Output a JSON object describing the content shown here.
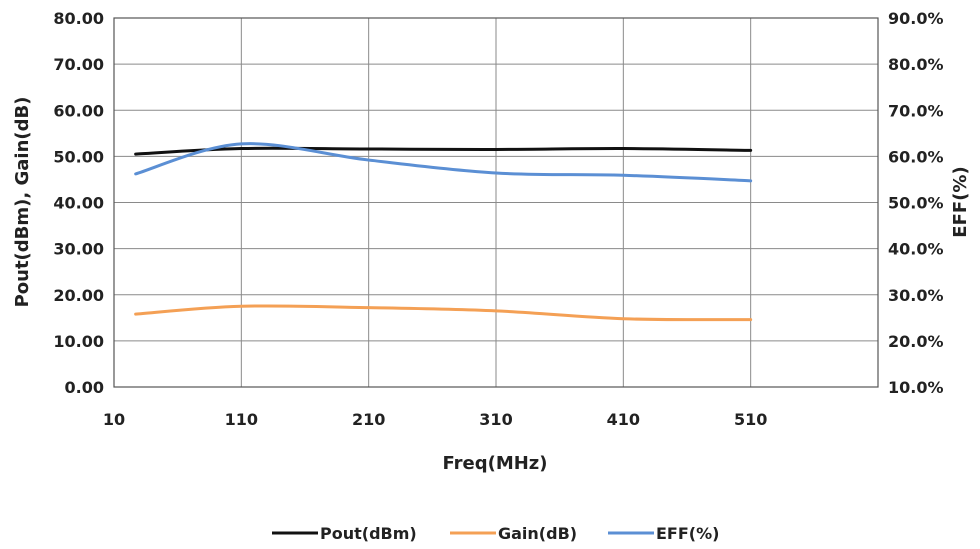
{
  "chart_data": {
    "type": "line",
    "xlabel": "Freq(MHz)",
    "ylabel": "Pout(dBm), Gain(dB)",
    "y2label": "EFF(%)",
    "xlim": [
      10,
      610
    ],
    "ylim": [
      0,
      80
    ],
    "y2lim": [
      10,
      90
    ],
    "x_ticks": [
      "10",
      "110",
      "210",
      "310",
      "410",
      "510"
    ],
    "y_ticks": [
      "0.00",
      "10.00",
      "20.00",
      "30.00",
      "40.00",
      "50.00",
      "60.00",
      "70.00",
      "80.00"
    ],
    "y2_ticks": [
      "10.0%",
      "20.0%",
      "30.0%",
      "40.0%",
      "50.0%",
      "60.0%",
      "70.0%",
      "80.0%",
      "90.0%"
    ],
    "grid": true,
    "legend_position": "bottom",
    "series": [
      {
        "name": "Pout(dBm)",
        "axis": "left",
        "color": "#111111",
        "x": [
          27,
          110,
          210,
          310,
          410,
          510
        ],
        "values": [
          50.5,
          51.7,
          51.6,
          51.5,
          51.7,
          51.3
        ]
      },
      {
        "name": "Gain(dB)",
        "axis": "left",
        "color": "#f4a055",
        "x": [
          27,
          110,
          210,
          310,
          410,
          510
        ],
        "values": [
          15.8,
          17.5,
          17.2,
          16.5,
          14.8,
          14.6
        ]
      },
      {
        "name": "EFF(%)",
        "axis": "right",
        "color": "#5b8fd4",
        "x": [
          27,
          110,
          210,
          310,
          410,
          510
        ],
        "values": [
          56.2,
          62.7,
          59.2,
          56.4,
          55.9,
          54.7
        ]
      }
    ]
  }
}
